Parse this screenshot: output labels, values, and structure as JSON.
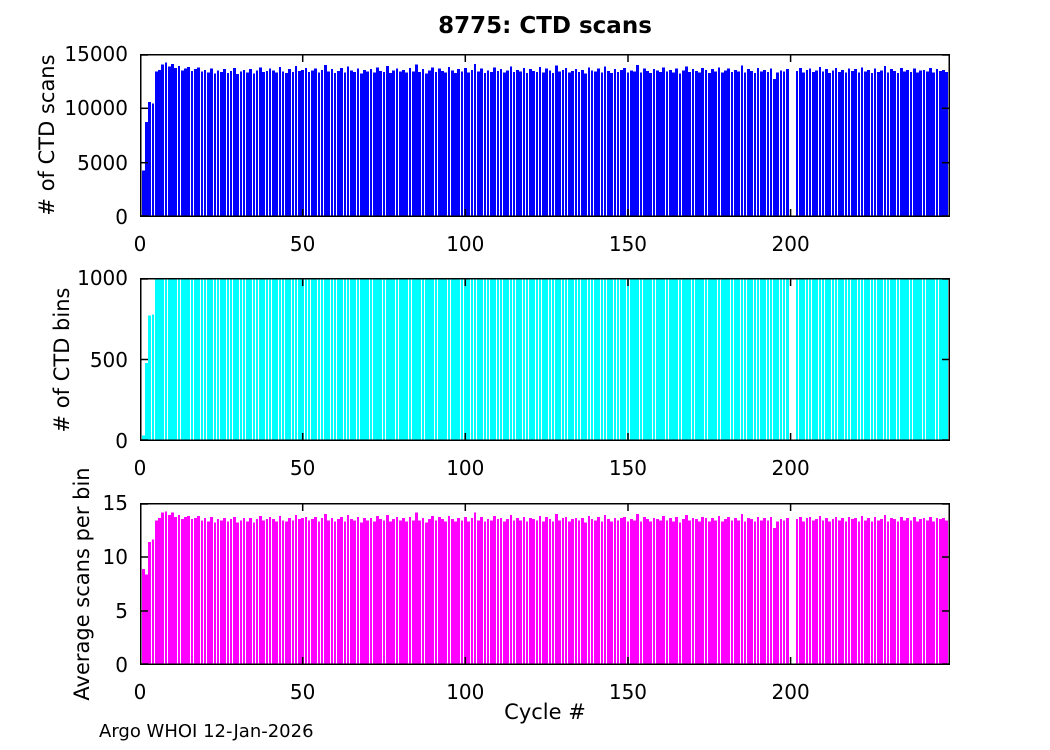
{
  "title": "8775: CTD scans",
  "xlabel": "Cycle #",
  "footnote": "Argo WHOI 12-Jan-2026",
  "axis_color": "#000000",
  "chart_data": [
    {
      "type": "bar",
      "name": "ctd-scans",
      "title": "8775: CTD scans",
      "ylabel": "# of CTD scans",
      "color": "#0000ff",
      "ylim": [
        0,
        15000
      ],
      "yticks": [
        0,
        5000,
        10000,
        15000
      ],
      "ytick_labels": [
        "0",
        "5000",
        "10000",
        "15000"
      ],
      "xlim": [
        0,
        249
      ],
      "xticks": [
        0,
        50,
        100,
        150,
        200
      ],
      "xtick_labels": [
        "0",
        "50",
        "100",
        "150",
        "200"
      ],
      "grid": false,
      "legend": "none",
      "x_start_cycle": 1,
      "values": [
        4300,
        8750,
        10600,
        10450,
        13400,
        13550,
        14050,
        14200,
        13850,
        14100,
        13700,
        13900,
        13500,
        13650,
        13800,
        13450,
        13600,
        13750,
        13400,
        13550,
        13300,
        13650,
        13200,
        13500,
        13350,
        13600,
        13250,
        13450,
        13700,
        13150,
        13400,
        13550,
        13300,
        13600,
        13200,
        13500,
        13750,
        13350,
        13450,
        13650,
        13500,
        13300,
        13800,
        13400,
        13250,
        13600,
        13350,
        13900,
        13450,
        13550,
        13700,
        13350,
        13500,
        13650,
        13300,
        13550,
        14000,
        13400,
        13600,
        13250,
        13450,
        13700,
        13300,
        13850,
        13500,
        13350,
        13650,
        13200,
        13550,
        13400,
        13600,
        13300,
        13750,
        13450,
        13350,
        13900,
        13250,
        13500,
        13650,
        13400,
        13550,
        13300,
        13700,
        13400,
        14050,
        13350,
        13600,
        13200,
        13500,
        13750,
        13350,
        13650,
        13450,
        13300,
        13800,
        13500,
        13250,
        13600,
        13400,
        13700,
        13300,
        13550,
        14100,
        13400,
        13650,
        13250,
        13500,
        13350,
        13750,
        13450,
        13600,
        13300,
        13500,
        13850,
        13350,
        13550,
        13400,
        13700,
        13250,
        13600,
        13450,
        13350,
        13800,
        13300,
        13650,
        13500,
        13250,
        13950,
        13400,
        13550,
        13700,
        13300,
        13450,
        13600,
        13350,
        13550,
        13200,
        13750,
        13500,
        13400,
        13650,
        13300,
        13850,
        13450,
        13250,
        13600,
        13350,
        13550,
        13700,
        13300,
        13500,
        13400,
        14000,
        13300,
        13650,
        13450,
        13250,
        13600,
        13500,
        13350,
        13750,
        13400,
        13550,
        13300,
        13650,
        13200,
        13500,
        13850,
        13350,
        13600,
        13450,
        13300,
        13700,
        13550,
        13250,
        13600,
        13400,
        13750,
        13300,
        13500,
        13650,
        13350,
        13550,
        13400,
        13950,
        13300,
        13600,
        13450,
        13250,
        13700,
        13400,
        13550,
        13350,
        13650,
        12700,
        13300,
        13500,
        13400,
        13600,
        null,
        null,
        13450,
        13700,
        13300,
        13550,
        13650,
        13350,
        13500,
        13800,
        13400,
        13600,
        13250,
        13500,
        13700,
        13350,
        13550,
        13300,
        13650,
        13450,
        13600,
        13300,
        13750,
        13400,
        13550,
        13250,
        13650,
        13350,
        13500,
        13900,
        13300,
        13600,
        13450,
        13250,
        13700,
        13400,
        13550,
        13350,
        13650,
        13300,
        13500,
        13550,
        13400,
        13700,
        13300,
        13600,
        13450,
        13550,
        13350
      ]
    },
    {
      "type": "bar",
      "name": "ctd-bins",
      "ylabel": "# of CTD bins",
      "color": "#00ffff",
      "ylim": [
        0,
        1000
      ],
      "yticks": [
        0,
        500,
        1000
      ],
      "ytick_labels": [
        "0",
        "500",
        "1000"
      ],
      "xlim": [
        0,
        249
      ],
      "xticks": [
        0,
        50,
        100,
        150,
        200
      ],
      "xtick_labels": [
        "0",
        "50",
        "100",
        "150",
        "200"
      ],
      "grid": false,
      "legend": "none",
      "x_start_cycle": 1,
      "values": [
        35,
        480,
        770,
        775,
        1000,
        1000,
        1000,
        1000,
        1000,
        1000,
        1000,
        1000,
        1000,
        1000,
        1000,
        1000,
        1000,
        1000,
        1000,
        1000,
        1000,
        1000,
        1000,
        1000,
        1000,
        1000,
        1000,
        1000,
        1000,
        1000,
        1000,
        1000,
        1000,
        1000,
        1000,
        1000,
        1000,
        1000,
        1000,
        1000,
        1000,
        1000,
        1000,
        1000,
        1000,
        1000,
        1000,
        1000,
        1000,
        1000,
        1000,
        1000,
        1000,
        1000,
        1000,
        1000,
        1000,
        1000,
        1000,
        1000,
        1000,
        1000,
        1000,
        1000,
        1000,
        1000,
        1000,
        1000,
        1000,
        1000,
        1000,
        1000,
        1000,
        1000,
        1000,
        1000,
        1000,
        1000,
        1000,
        1000,
        1000,
        1000,
        1000,
        1000,
        1000,
        1000,
        1000,
        1000,
        1000,
        1000,
        1000,
        1000,
        1000,
        1000,
        1000,
        1000,
        1000,
        1000,
        1000,
        1000,
        1000,
        1000,
        1000,
        1000,
        1000,
        1000,
        1000,
        1000,
        1000,
        1000,
        1000,
        1000,
        1000,
        1000,
        1000,
        1000,
        1000,
        1000,
        1000,
        1000,
        1000,
        1000,
        1000,
        1000,
        1000,
        1000,
        1000,
        1000,
        1000,
        1000,
        1000,
        1000,
        1000,
        1000,
        1000,
        1000,
        1000,
        1000,
        1000,
        1000,
        1000,
        1000,
        1000,
        1000,
        1000,
        1000,
        1000,
        1000,
        1000,
        1000,
        1000,
        1000,
        1000,
        1000,
        1000,
        1000,
        1000,
        1000,
        1000,
        1000,
        1000,
        1000,
        1000,
        1000,
        1000,
        1000,
        1000,
        1000,
        1000,
        1000,
        1000,
        1000,
        1000,
        1000,
        1000,
        1000,
        1000,
        1000,
        1000,
        1000,
        1000,
        1000,
        1000,
        1000,
        1000,
        1000,
        1000,
        1000,
        1000,
        1000,
        1000,
        1000,
        1000,
        1000,
        1000,
        1000,
        1000,
        1000,
        1000,
        null,
        null,
        1000,
        1000,
        1000,
        1000,
        1000,
        1000,
        1000,
        1000,
        1000,
        1000,
        1000,
        1000,
        1000,
        1000,
        1000,
        1000,
        1000,
        1000,
        1000,
        1000,
        1000,
        1000,
        1000,
        1000,
        1000,
        1000,
        1000,
        1000,
        1000,
        1000,
        1000,
        1000,
        1000,
        1000,
        1000,
        1000,
        1000,
        1000,
        1000,
        1000,
        1000,
        1000,
        1000,
        1000,
        1000,
        1000,
        1000
      ]
    },
    {
      "type": "bar",
      "name": "average-scans-per-bin",
      "ylabel": "Average scans per bin",
      "xlabel": "Cycle #",
      "color": "#ff00ff",
      "ylim": [
        0,
        15
      ],
      "yticks": [
        0,
        5,
        10,
        15
      ],
      "ytick_labels": [
        "0",
        "5",
        "10",
        "15"
      ],
      "xlim": [
        0,
        249
      ],
      "xticks": [
        0,
        50,
        100,
        150,
        200
      ],
      "xtick_labels": [
        "0",
        "50",
        "100",
        "150",
        "200"
      ],
      "grid": false,
      "legend": "none",
      "x_start_cycle": 1,
      "values": [
        8.9,
        8.4,
        11.4,
        11.6,
        13.4,
        13.6,
        14.1,
        14.2,
        13.9,
        14.1,
        13.7,
        13.9,
        13.5,
        13.7,
        13.8,
        13.5,
        13.6,
        13.8,
        13.4,
        13.6,
        13.3,
        13.7,
        13.2,
        13.5,
        13.4,
        13.6,
        13.3,
        13.5,
        13.7,
        13.2,
        13.4,
        13.6,
        13.3,
        13.6,
        13.2,
        13.5,
        13.8,
        13.4,
        13.5,
        13.7,
        13.5,
        13.3,
        13.8,
        13.4,
        13.3,
        13.6,
        13.4,
        13.9,
        13.5,
        13.6,
        13.7,
        13.4,
        13.5,
        13.7,
        13.3,
        13.6,
        14.0,
        13.4,
        13.6,
        13.3,
        13.5,
        13.7,
        13.3,
        13.9,
        13.5,
        13.4,
        13.7,
        13.2,
        13.6,
        13.4,
        13.6,
        13.3,
        13.8,
        13.5,
        13.4,
        13.9,
        13.3,
        13.5,
        13.7,
        13.4,
        13.6,
        13.3,
        13.7,
        13.4,
        14.1,
        13.4,
        13.6,
        13.2,
        13.5,
        13.8,
        13.4,
        13.7,
        13.5,
        13.3,
        13.8,
        13.5,
        13.3,
        13.6,
        13.4,
        13.7,
        13.3,
        13.6,
        14.1,
        13.4,
        13.7,
        13.3,
        13.5,
        13.4,
        13.8,
        13.5,
        13.6,
        13.3,
        13.5,
        13.9,
        13.4,
        13.6,
        13.4,
        13.7,
        13.3,
        13.6,
        13.5,
        13.4,
        13.8,
        13.3,
        13.7,
        13.5,
        13.3,
        14.0,
        13.4,
        13.6,
        13.7,
        13.3,
        13.5,
        13.6,
        13.4,
        13.6,
        13.2,
        13.8,
        13.5,
        13.4,
        13.7,
        13.3,
        13.9,
        13.5,
        13.3,
        13.6,
        13.4,
        13.6,
        13.7,
        13.3,
        13.5,
        13.4,
        14.0,
        13.3,
        13.7,
        13.5,
        13.3,
        13.6,
        13.5,
        13.4,
        13.8,
        13.4,
        13.6,
        13.3,
        13.7,
        13.2,
        13.5,
        13.9,
        13.4,
        13.6,
        13.5,
        13.3,
        13.7,
        13.6,
        13.3,
        13.6,
        13.4,
        13.8,
        13.3,
        13.5,
        13.7,
        13.4,
        13.6,
        13.4,
        14.0,
        13.3,
        13.6,
        13.5,
        13.3,
        13.7,
        13.4,
        13.6,
        13.4,
        13.7,
        12.7,
        13.3,
        13.5,
        13.4,
        13.6,
        null,
        null,
        13.5,
        13.7,
        13.3,
        13.6,
        13.7,
        13.4,
        13.5,
        13.8,
        13.4,
        13.6,
        13.3,
        13.5,
        13.7,
        13.4,
        13.6,
        13.3,
        13.7,
        13.5,
        13.6,
        13.3,
        13.8,
        13.4,
        13.6,
        13.3,
        13.7,
        13.4,
        13.5,
        13.9,
        13.3,
        13.6,
        13.5,
        13.3,
        13.7,
        13.4,
        13.6,
        13.4,
        13.7,
        13.3,
        13.5,
        13.6,
        13.4,
        13.7,
        13.3,
        13.6,
        13.5,
        13.6,
        13.4
      ]
    }
  ]
}
